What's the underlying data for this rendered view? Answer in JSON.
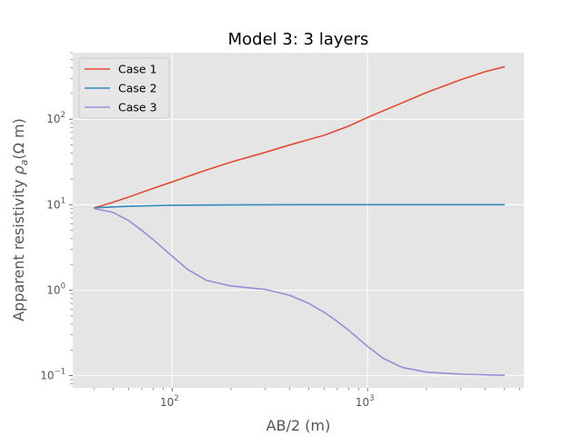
{
  "chart_data": {
    "type": "line",
    "title": "Model 3: 3 layers",
    "xlabel": "AB/2 (m)",
    "ylabel_main": "Apparent resistivity ",
    "ylabel_symbol": "ρ",
    "ylabel_subscript": "a",
    "ylabel_unit": "(Ω m)",
    "x_scale": "log",
    "y_scale": "log",
    "xlim": [
      31,
      6300
    ],
    "ylim": [
      0.072,
      600
    ],
    "grid": true,
    "legend_position": "top-left",
    "x_ticks": [
      {
        "value": 100,
        "base": "10",
        "exp": "2"
      },
      {
        "value": 1000,
        "base": "10",
        "exp": "3"
      }
    ],
    "y_ticks": [
      {
        "value": 0.1,
        "base": "10",
        "exp": "−1"
      },
      {
        "value": 1,
        "base": "10",
        "exp": "0"
      },
      {
        "value": 10,
        "base": "10",
        "exp": "1"
      },
      {
        "value": 100,
        "base": "10",
        "exp": "2"
      }
    ],
    "series": [
      {
        "name": "Case 1",
        "color": "#E24A33",
        "x": [
          40,
          50,
          60,
          80,
          100,
          150,
          200,
          300,
          400,
          600,
          800,
          1000,
          1500,
          2000,
          3000,
          4000,
          5000
        ],
        "y": [
          9.2,
          10.7,
          12.3,
          15.5,
          18.5,
          25.5,
          31.5,
          41,
          50,
          65,
          83,
          105,
          155,
          205,
          290,
          360,
          410
        ]
      },
      {
        "name": "Case 2",
        "color": "#348ABD",
        "x": [
          40,
          60,
          100,
          200,
          500,
          1000,
          2000,
          5000
        ],
        "y": [
          9.2,
          9.6,
          9.85,
          9.95,
          10,
          10,
          10,
          10
        ]
      },
      {
        "name": "Case 3",
        "color": "#988ED5",
        "x": [
          40,
          50,
          60,
          70,
          80,
          100,
          120,
          150,
          200,
          300,
          400,
          500,
          600,
          700,
          800,
          1000,
          1200,
          1500,
          2000,
          3000,
          5000
        ],
        "y": [
          9.0,
          8.1,
          6.5,
          5.0,
          3.9,
          2.5,
          1.75,
          1.3,
          1.12,
          1.02,
          0.87,
          0.7,
          0.55,
          0.43,
          0.34,
          0.22,
          0.16,
          0.125,
          0.11,
          0.104,
          0.101
        ]
      }
    ]
  }
}
